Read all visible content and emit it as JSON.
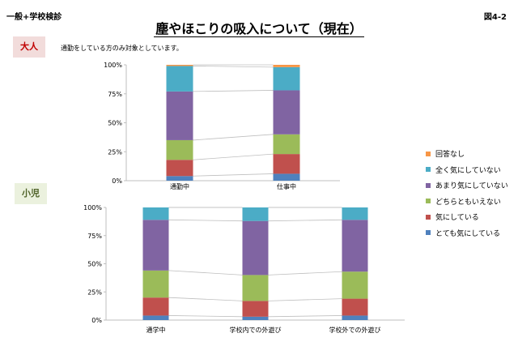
{
  "header": {
    "left_label": "一般+学校検診",
    "right_label": "図4-2"
  },
  "title": "塵やほこりの吸入について（現在）",
  "badges": {
    "adult": "大人",
    "child": "小児"
  },
  "note": "通勤をしている方のみ対象としています。",
  "legend": [
    {
      "label": "回答なし",
      "color": "#f79646"
    },
    {
      "label": "全く気にしていない",
      "color": "#4bacc6"
    },
    {
      "label": "あまり気にしていない",
      "color": "#8064a2"
    },
    {
      "label": "どちらともいえない",
      "color": "#9bbb59"
    },
    {
      "label": "気にしている",
      "color": "#c0504d"
    },
    {
      "label": "とても気にしている",
      "color": "#4f81bd"
    }
  ],
  "chart_data": [
    {
      "type": "bar",
      "stacked": true,
      "percent": true,
      "categories": [
        "通勤中",
        "仕事中"
      ],
      "ylim": [
        0,
        100
      ],
      "yticks": [
        "0%",
        "25%",
        "50%",
        "75%",
        "100%"
      ],
      "series": [
        {
          "name": "とても気にしている",
          "values": [
            4,
            6
          ]
        },
        {
          "name": "気にしている",
          "values": [
            14,
            17
          ]
        },
        {
          "name": "どちらともいえない",
          "values": [
            17,
            17
          ]
        },
        {
          "name": "あまり気にしていない",
          "values": [
            42,
            38
          ]
        },
        {
          "name": "全く気にしていない",
          "values": [
            22,
            20
          ]
        },
        {
          "name": "回答なし",
          "values": [
            1,
            2
          ]
        }
      ]
    },
    {
      "type": "bar",
      "stacked": true,
      "percent": true,
      "categories": [
        "通学中",
        "学校内での外遊び",
        "学校外での外遊び"
      ],
      "ylim": [
        0,
        100
      ],
      "yticks": [
        "0%",
        "25%",
        "50%",
        "75%",
        "100%"
      ],
      "series": [
        {
          "name": "とても気にしている",
          "values": [
            4,
            3,
            4
          ]
        },
        {
          "name": "気にしている",
          "values": [
            16,
            14,
            15
          ]
        },
        {
          "name": "どちらともいえない",
          "values": [
            24,
            23,
            24
          ]
        },
        {
          "name": "あまり気にしていない",
          "values": [
            45,
            48,
            46
          ]
        },
        {
          "name": "全く気にしていない",
          "values": [
            11,
            12,
            11
          ]
        },
        {
          "name": "回答なし",
          "values": [
            0,
            0,
            0
          ]
        }
      ]
    }
  ]
}
